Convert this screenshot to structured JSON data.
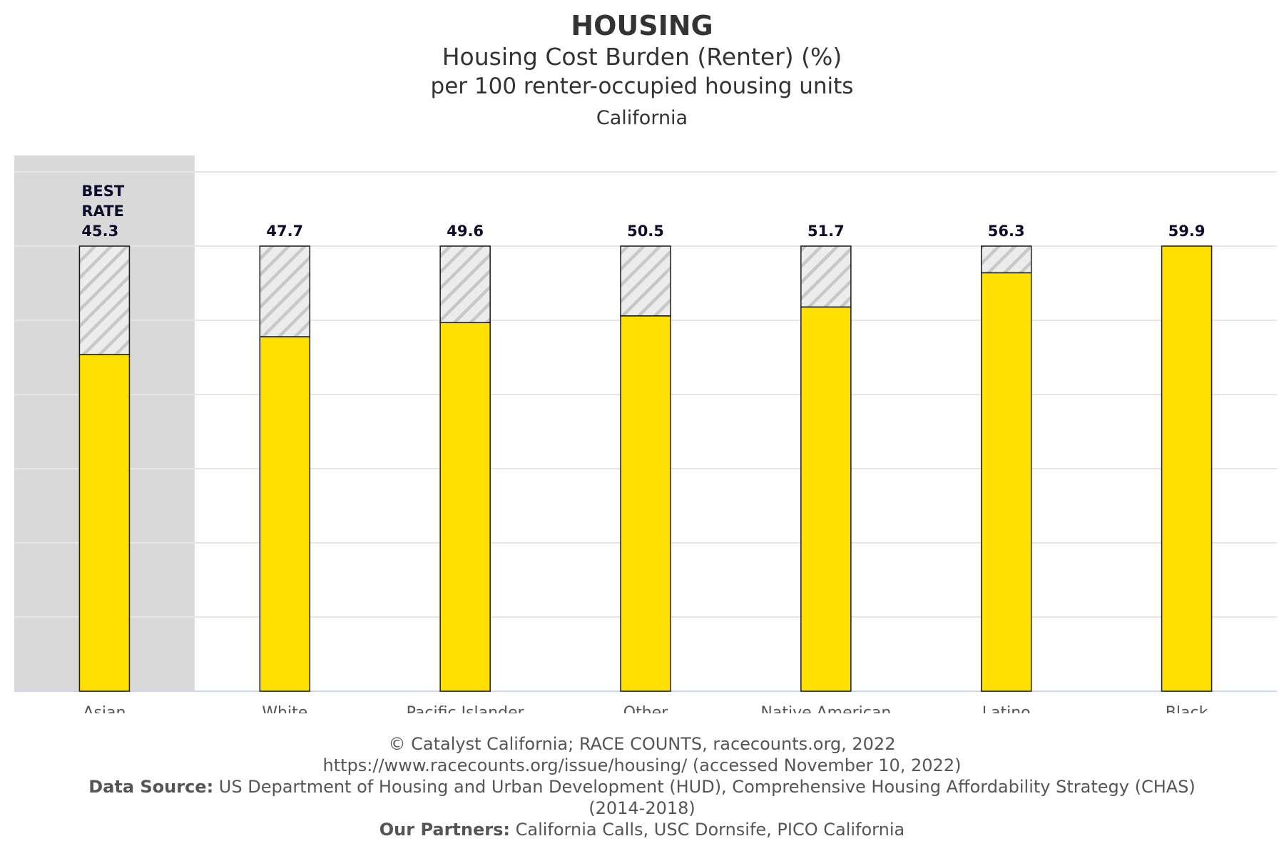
{
  "chart_data": {
    "type": "bar",
    "title": "HOUSING",
    "subtitle": "Housing Cost Burden (Renter) (%)",
    "subtitle2": "per 100 renter-occupied housing units",
    "subtitle3": "California",
    "categories": [
      "Asian",
      "White",
      "Pacific Islander",
      "Other",
      "Native American",
      "Latino",
      "Black"
    ],
    "values": [
      45.3,
      47.7,
      49.6,
      50.5,
      51.7,
      56.3,
      59.9
    ],
    "best_label_lines": [
      "BEST",
      "RATE"
    ],
    "best_index": 0,
    "ylim": [
      0,
      60
    ],
    "grid": true,
    "colors": {
      "bar": "#FFE000",
      "bar_outline": "#1a1a1a",
      "hatch": "#cccccc",
      "highlight_band": "#d9d9d9",
      "grid": "#e6e6e6",
      "axis": "#ccd6eb",
      "value_label": "#0d0d2b",
      "category_label": "#555555"
    }
  },
  "footer": {
    "copyright": "© Catalyst California; RACE COUNTS, racecounts.org, 2022",
    "url": "https://www.racecounts.org/issue/housing/ (accessed November 10, 2022)",
    "source_label": "Data Source:",
    "source_text": " US Department of Housing and Urban Development (HUD), Comprehensive Housing Affordability Strategy (CHAS) (2014-2018)",
    "partners_label": "Our Partners:",
    "partners_text": " California Calls, USC Dornsife, PICO California"
  }
}
